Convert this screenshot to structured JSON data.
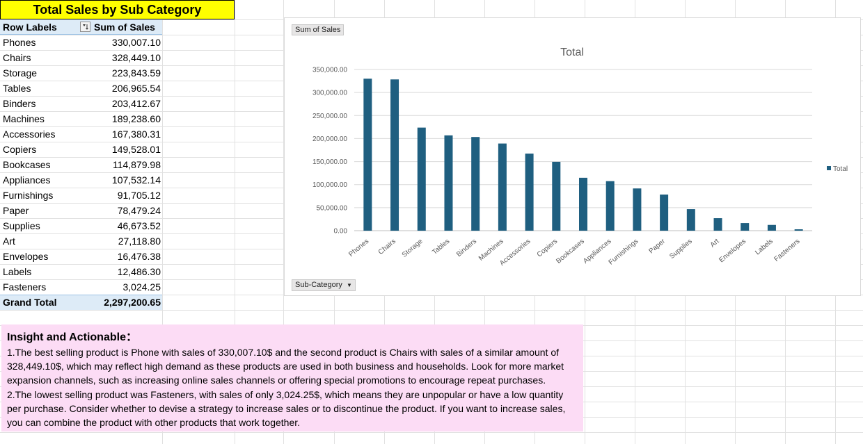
{
  "pivot": {
    "title": "Total Sales by Sub Category",
    "header_label": "Row Labels",
    "filter_icon": "sort-descending-filter-icon",
    "header_value": "Sum of Sales",
    "rows": [
      {
        "label": "Phones",
        "value": "330,007.10"
      },
      {
        "label": "Chairs",
        "value": "328,449.10"
      },
      {
        "label": "Storage",
        "value": "223,843.59"
      },
      {
        "label": "Tables",
        "value": "206,965.54"
      },
      {
        "label": "Binders",
        "value": "203,412.67"
      },
      {
        "label": "Machines",
        "value": "189,238.60"
      },
      {
        "label": "Accessories",
        "value": "167,380.31"
      },
      {
        "label": "Copiers",
        "value": "149,528.01"
      },
      {
        "label": "Bookcases",
        "value": "114,879.98"
      },
      {
        "label": "Appliances",
        "value": "107,532.14"
      },
      {
        "label": "Furnishings",
        "value": "91,705.12"
      },
      {
        "label": "Paper",
        "value": "78,479.24"
      },
      {
        "label": "Supplies",
        "value": "46,673.52"
      },
      {
        "label": "Art",
        "value": "27,118.80"
      },
      {
        "label": "Envelopes",
        "value": "16,476.38"
      },
      {
        "label": "Labels",
        "value": "12,486.30"
      },
      {
        "label": "Fasteners",
        "value": "3,024.25"
      }
    ],
    "grand_total_label": "Grand Total",
    "grand_total_value": "2,297,200.65"
  },
  "chart": {
    "value_field_button": "Sum of Sales",
    "axis_field_button": "Sub-Category",
    "dropdown_icon": "dropdown-arrow-icon"
  },
  "chart_data": {
    "type": "bar",
    "title": "Total",
    "categories": [
      "Phones",
      "Chairs",
      "Storage",
      "Tables",
      "Binders",
      "Machines",
      "Accessories",
      "Copiers",
      "Bookcases",
      "Appliances",
      "Furnishings",
      "Paper",
      "Supplies",
      "Art",
      "Envelopes",
      "Labels",
      "Fasteners"
    ],
    "series": [
      {
        "name": "Total",
        "values": [
          330007.1,
          328449.1,
          223843.59,
          206965.54,
          203412.67,
          189238.6,
          167380.31,
          149528.01,
          114879.98,
          107532.14,
          91705.12,
          78479.24,
          46673.52,
          27118.8,
          16476.38,
          12486.3,
          3024.25
        ]
      }
    ],
    "ylim": [
      0,
      350000
    ],
    "yticks": [
      "0.00",
      "50,000.00",
      "100,000.00",
      "150,000.00",
      "200,000.00",
      "250,000.00",
      "300,000.00",
      "350,000.00"
    ],
    "grid": true,
    "legend": "right",
    "bar_color": "#1f5f80"
  },
  "insight": {
    "title": "Insight and Actionable：",
    "p1": "1.The best selling product is Phone with sales of 330,007.10$ and the second product is Chairs with sales of a similar amount of 328,449.10$, which may reflect high demand as these products are used in both business and households. Look for more market expansion channels, such as increasing online sales channels or offering special promotions to encourage repeat purchases.",
    "p2": "2.The lowest selling product was Fasteners, with sales of only 3,024.25$, which means they are unpopular or have a low quantity per purchase. Consider whether to devise a strategy to increase sales or to discontinue the product. If you want to increase sales, you can combine the product with other products that work together."
  }
}
